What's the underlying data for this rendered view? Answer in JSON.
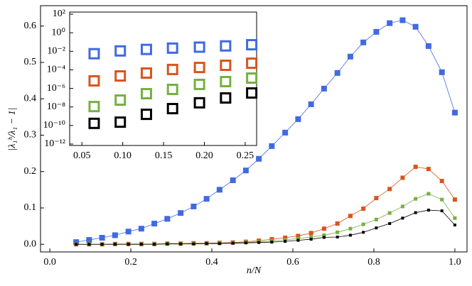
{
  "chart_data": [
    {
      "type": "line",
      "x_label": "n/N",
      "y_label": "|λ₁ʰ/λ₁ − 1|",
      "x": [
        0.065,
        0.097,
        0.129,
        0.161,
        0.194,
        0.226,
        0.258,
        0.29,
        0.323,
        0.355,
        0.387,
        0.419,
        0.452,
        0.484,
        0.516,
        0.548,
        0.581,
        0.613,
        0.645,
        0.677,
        0.71,
        0.742,
        0.774,
        0.806,
        0.839,
        0.871,
        0.903,
        0.935,
        0.968,
        1.0
      ],
      "series": [
        {
          "color": "#4169e1",
          "values": [
            0.006,
            0.012,
            0.018,
            0.025,
            0.035,
            0.043,
            0.057,
            0.07,
            0.086,
            0.104,
            0.125,
            0.15,
            0.176,
            0.203,
            0.235,
            0.27,
            0.307,
            0.344,
            0.385,
            0.428,
            0.471,
            0.516,
            0.555,
            0.584,
            0.608,
            0.616,
            0.598,
            0.545,
            0.473,
            0.362
          ]
        },
        {
          "color": "#d9541e",
          "values": [
            0.0,
            0.0,
            0.0,
            0.001,
            0.001,
            0.001,
            0.001,
            0.002,
            0.002,
            0.003,
            0.003,
            0.004,
            0.005,
            0.007,
            0.01,
            0.014,
            0.018,
            0.023,
            0.031,
            0.043,
            0.057,
            0.078,
            0.098,
            0.127,
            0.152,
            0.183,
            0.213,
            0.207,
            0.174,
            0.123
          ]
        },
        {
          "color": "#76b041",
          "values": [
            0,
            0,
            0,
            0,
            0,
            0,
            0.001,
            0.001,
            0.001,
            0.002,
            0.002,
            0.003,
            0.004,
            0.005,
            0.007,
            0.009,
            0.012,
            0.016,
            0.02,
            0.025,
            0.033,
            0.043,
            0.055,
            0.068,
            0.086,
            0.104,
            0.125,
            0.139,
            0.123,
            0.072
          ]
        },
        {
          "color": "#000000",
          "values": [
            0,
            0,
            0,
            0,
            0,
            0,
            0,
            0.001,
            0.001,
            0.001,
            0.002,
            0.002,
            0.003,
            0.004,
            0.005,
            0.006,
            0.008,
            0.011,
            0.014,
            0.019,
            0.02,
            0.025,
            0.033,
            0.045,
            0.057,
            0.072,
            0.087,
            0.094,
            0.092,
            0.053
          ]
        }
      ],
      "xlim": [
        -0.023,
        1.03
      ],
      "ylim": [
        -0.021,
        0.656
      ],
      "xticks": [
        {
          "value": 0,
          "label": "0.0"
        },
        0.2,
        0.4,
        0.6,
        0.8,
        {
          "value": 1,
          "label": "1.0"
        }
      ],
      "yticks": [
        {
          "value": 0,
          "label": "0.0"
        },
        0.1,
        0.2,
        0.3,
        0.4,
        0.5,
        0.6
      ]
    },
    {
      "type": "scatter",
      "x": [
        0.065,
        0.097,
        0.129,
        0.161,
        0.194,
        0.226,
        0.258
      ],
      "series": [
        {
          "color": "#4169e1",
          "values": [
            0.0055,
            0.011,
            0.016,
            0.022,
            0.028,
            0.038,
            0.051
          ]
        },
        {
          "color": "#d9541e",
          "values": [
            6.5e-06,
            2.2e-05,
            4.5e-05,
            0.00011,
            0.00018,
            0.00031,
            0.00052
          ]
        },
        {
          "color": "#76b041",
          "values": [
            1.1e-08,
            5.5e-08,
            2.7e-07,
            7.8e-07,
            2.7e-06,
            5.4e-06,
            1.3e-05
          ]
        },
        {
          "color": "#000000",
          "values": [
            1.7e-10,
            2.3e-10,
            1.6e-09,
            6.6e-09,
            2.8e-08,
            9.3e-08,
            3.2e-07
          ]
        }
      ],
      "y_log": true,
      "xlim": [
        0.035,
        0.264
      ],
      "ylim": [
        7e-13,
        170
      ],
      "xticks": [
        0.05,
        {
          "value": 0.1,
          "label": "0.10"
        },
        0.15,
        {
          "value": 0.2,
          "label": "0.20"
        },
        0.25
      ],
      "yticks": [
        {
          "value": 100,
          "label": "10²"
        },
        {
          "value": 1,
          "label": "10⁰"
        },
        {
          "value": 0.01,
          "label": "10⁻²"
        },
        {
          "value": 0.0001,
          "label": "10⁻⁴"
        },
        {
          "value": 1e-06,
          "label": "10⁻⁶"
        },
        {
          "value": 1e-08,
          "label": "10⁻⁸"
        },
        {
          "value": 1e-10,
          "label": "10⁻¹⁰"
        },
        {
          "value": 1e-12,
          "label": "10⁻¹²"
        }
      ]
    }
  ]
}
